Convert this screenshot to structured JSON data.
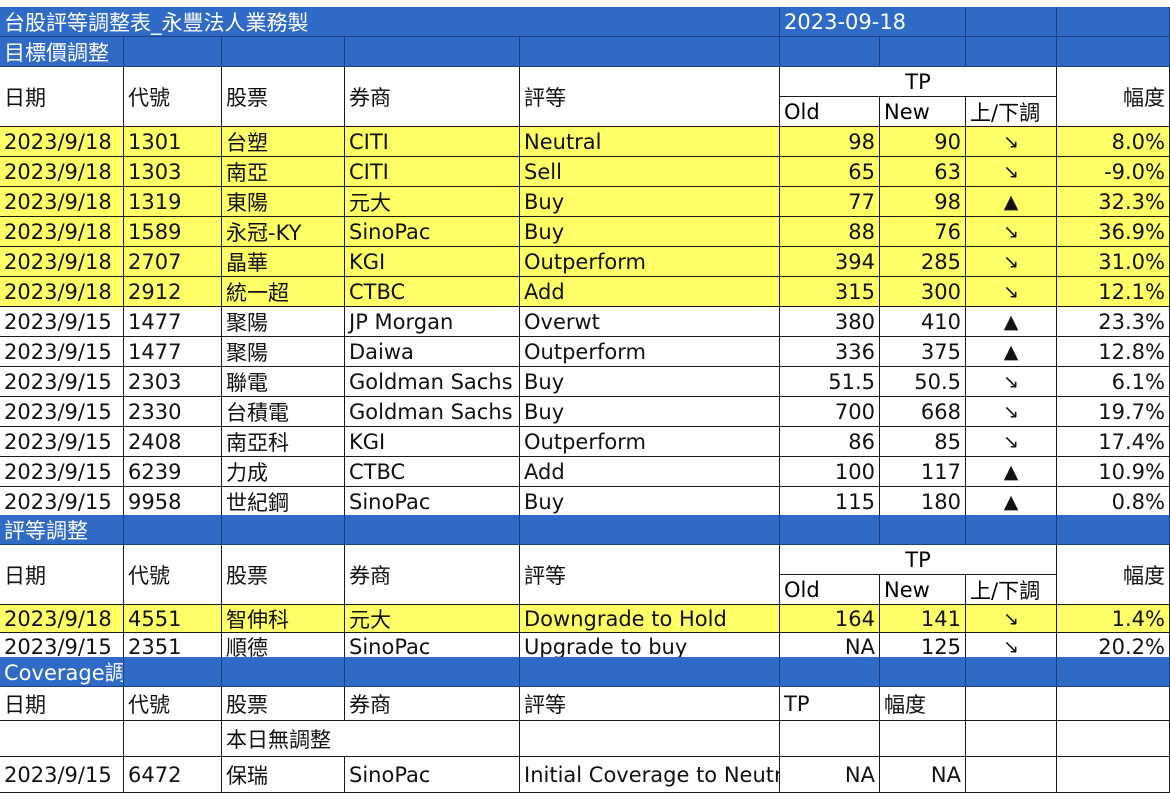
{
  "title": "台股評等調整表_永豐法人業務製",
  "date": "2023-09-18",
  "section1": {
    "title": "目標價調整"
  },
  "section2": {
    "title": "評等調整"
  },
  "section3": {
    "title": "Coverage調整"
  },
  "headers": {
    "date": "日期",
    "code": "代號",
    "stock": "股票",
    "broker": "券商",
    "rating": "評等",
    "tp": "TP",
    "old": "Old",
    "new": "New",
    "dir": "上/下調",
    "change": "幅度"
  },
  "coverage_headers": {
    "tp": "TP",
    "change": "幅度"
  },
  "symbols": {
    "down": "↘",
    "up": "▲"
  },
  "target_rows": [
    {
      "date": "2023/9/18",
      "code": "1301",
      "stock": "台塑",
      "broker": "CITI",
      "rating": "Neutral",
      "old": "98",
      "new": "90",
      "dir": "↘",
      "change": "8.0%",
      "highlight": true
    },
    {
      "date": "2023/9/18",
      "code": "1303",
      "stock": "南亞",
      "broker": "CITI",
      "rating": "Sell",
      "old": "65",
      "new": "63",
      "dir": "↘",
      "change": "-9.0%",
      "highlight": true
    },
    {
      "date": "2023/9/18",
      "code": "1319",
      "stock": "東陽",
      "broker": "元大",
      "rating": "Buy",
      "old": "77",
      "new": "98",
      "dir": "▲",
      "change": "32.3%",
      "highlight": true
    },
    {
      "date": "2023/9/18",
      "code": "1589",
      "stock": "永冠-KY",
      "broker": "SinoPac",
      "rating": "Buy",
      "old": "88",
      "new": "76",
      "dir": "↘",
      "change": "36.9%",
      "highlight": true
    },
    {
      "date": "2023/9/18",
      "code": "2707",
      "stock": "晶華",
      "broker": "KGI",
      "rating": "Outperform",
      "old": "394",
      "new": "285",
      "dir": "↘",
      "change": "31.0%",
      "highlight": true
    },
    {
      "date": "2023/9/18",
      "code": "2912",
      "stock": "統一超",
      "broker": "CTBC",
      "rating": "Add",
      "old": "315",
      "new": "300",
      "dir": "↘",
      "change": "12.1%",
      "highlight": true
    },
    {
      "date": "2023/9/15",
      "code": "1477",
      "stock": "聚陽",
      "broker": "JP Morgan",
      "rating": "Overwt",
      "old": "380",
      "new": "410",
      "dir": "▲",
      "change": "23.3%",
      "highlight": false
    },
    {
      "date": "2023/9/15",
      "code": "1477",
      "stock": "聚陽",
      "broker": "Daiwa",
      "rating": "Outperform",
      "old": "336",
      "new": "375",
      "dir": "▲",
      "change": "12.8%",
      "highlight": false
    },
    {
      "date": "2023/9/15",
      "code": "2303",
      "stock": "聯電",
      "broker": "Goldman Sachs",
      "rating": "Buy",
      "old": "51.5",
      "new": "50.5",
      "dir": "↘",
      "change": "6.1%",
      "highlight": false
    },
    {
      "date": "2023/9/15",
      "code": "2330",
      "stock": "台積電",
      "broker": "Goldman Sachs",
      "rating": "Buy",
      "old": "700",
      "new": "668",
      "dir": "↘",
      "change": "19.7%",
      "highlight": false
    },
    {
      "date": "2023/9/15",
      "code": "2408",
      "stock": "南亞科",
      "broker": "KGI",
      "rating": "Outperform",
      "old": "86",
      "new": "85",
      "dir": "↘",
      "change": "17.4%",
      "highlight": false
    },
    {
      "date": "2023/9/15",
      "code": "6239",
      "stock": "力成",
      "broker": "CTBC",
      "rating": "Add",
      "old": "100",
      "new": "117",
      "dir": "▲",
      "change": "10.9%",
      "highlight": false
    },
    {
      "date": "2023/9/15",
      "code": "9958",
      "stock": "世紀鋼",
      "broker": "SinoPac",
      "rating": "Buy",
      "old": "115",
      "new": "180",
      "dir": "▲",
      "change": "0.8%",
      "highlight": false
    }
  ],
  "rating_rows": [
    {
      "date": "2023/9/18",
      "code": "4551",
      "stock": "智伸科",
      "broker": "元大",
      "rating": "Downgrade to Hold",
      "old": "164",
      "new": "141",
      "dir": "↘",
      "change": "1.4%",
      "highlight": true
    },
    {
      "date": "2023/9/15",
      "code": "2351",
      "stock": "順德",
      "broker": "SinoPac",
      "rating": "Upgrade to buy",
      "old": "NA",
      "new": "125",
      "dir": "↘",
      "change": "20.2%",
      "highlight": false
    }
  ],
  "coverage_note": "本日無調整",
  "coverage_rows": [
    {
      "date": "2023/9/15",
      "code": "6472",
      "stock": "保瑞",
      "broker": "SinoPac",
      "rating": "Initial Coverage to Neutral",
      "tp": "NA",
      "change": "NA"
    }
  ]
}
